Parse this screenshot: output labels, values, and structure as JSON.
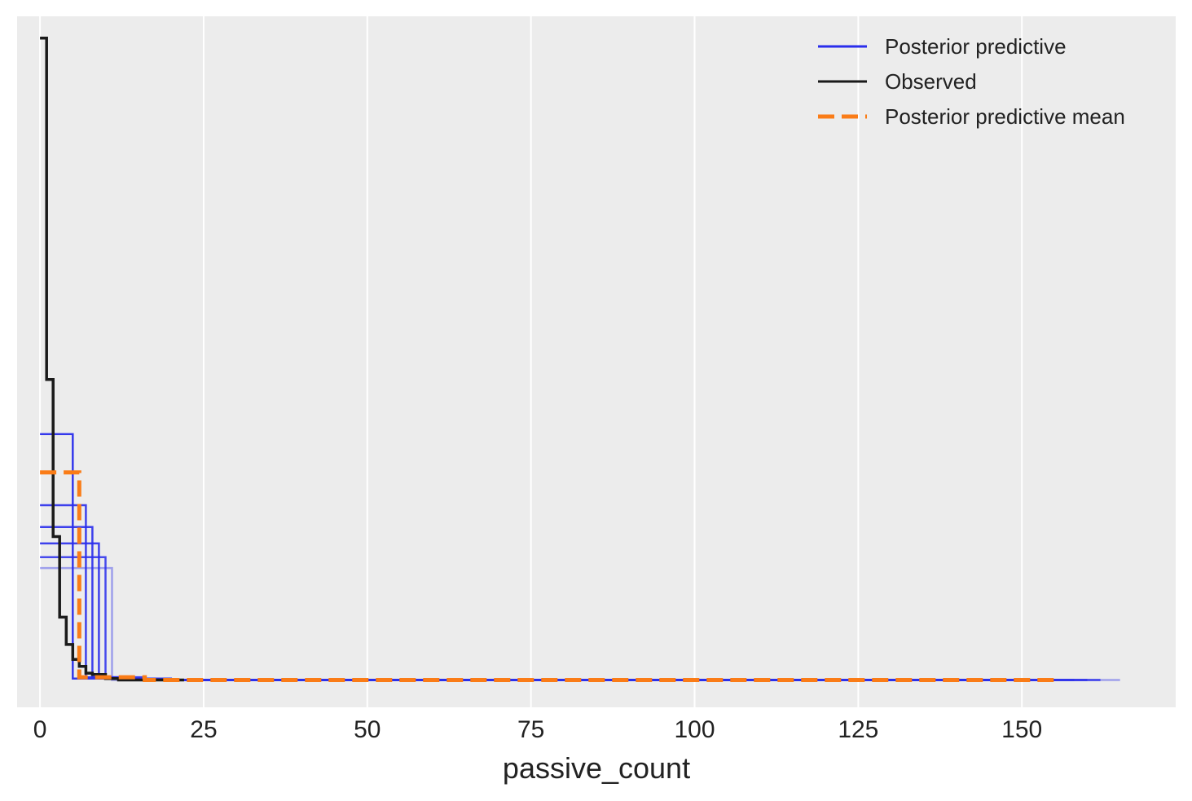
{
  "chart_data": {
    "type": "line",
    "title": "",
    "xlabel": "passive_count",
    "ylabel": "",
    "xlim": [
      -3.5,
      173.5
    ],
    "ylim": [
      -0.02,
      0.486
    ],
    "x_ticks": [
      0,
      25,
      50,
      75,
      100,
      125,
      150
    ],
    "x_tick_labels": [
      "0",
      "25",
      "50",
      "75",
      "100",
      "125",
      "150"
    ],
    "y_ticks_shown": false,
    "grid": "vertical",
    "background": "#ececec",
    "legend": {
      "position": "top-right",
      "entries": [
        {
          "label": "Posterior predictive",
          "color": "#2a2eec",
          "style": "solid"
        },
        {
          "label": "Observed",
          "color": "#1a1a1a",
          "style": "solid"
        },
        {
          "label": "Posterior predictive mean",
          "color": "#fa7c17",
          "style": "dashed"
        }
      ]
    },
    "series": [
      {
        "name": "Observed",
        "role": "observed",
        "color": "#1a1a1a",
        "stroke": "solid",
        "opacity": 1,
        "points": [
          [
            0,
            0.47
          ],
          [
            1,
            0.47
          ],
          [
            1,
            0.22
          ],
          [
            2,
            0.22
          ],
          [
            2,
            0.105
          ],
          [
            3,
            0.105
          ],
          [
            3,
            0.046
          ],
          [
            4,
            0.046
          ],
          [
            4,
            0.026
          ],
          [
            5,
            0.026
          ],
          [
            5,
            0.015
          ],
          [
            6,
            0.015
          ],
          [
            6,
            0.01
          ],
          [
            7,
            0.01
          ],
          [
            7,
            0.005
          ],
          [
            8,
            0.005
          ],
          [
            8,
            0.004
          ],
          [
            10,
            0.004
          ],
          [
            10,
            0.001
          ],
          [
            12,
            0.001
          ],
          [
            12,
            0
          ],
          [
            22,
            0
          ]
        ]
      },
      {
        "name": "Posterior predictive",
        "role": "sample",
        "color": "#2a2eec",
        "stroke": "solid",
        "opacity": 0.95,
        "points": [
          [
            0,
            0.18
          ],
          [
            5,
            0.18
          ],
          [
            5,
            0.001
          ],
          [
            20,
            0.001
          ],
          [
            20,
            0
          ],
          [
            150,
            0
          ]
        ]
      },
      {
        "name": "Posterior predictive",
        "role": "sample",
        "color": "#2a2eec",
        "stroke": "solid",
        "opacity": 0.9,
        "points": [
          [
            0,
            0.128
          ],
          [
            7,
            0.128
          ],
          [
            7,
            0.002
          ],
          [
            16,
            0.002
          ],
          [
            16,
            0
          ],
          [
            155,
            0
          ]
        ]
      },
      {
        "name": "Posterior predictive",
        "role": "sample",
        "color": "#2a2eec",
        "stroke": "solid",
        "opacity": 0.9,
        "points": [
          [
            0,
            0.112
          ],
          [
            8,
            0.112
          ],
          [
            8,
            0.002
          ],
          [
            14,
            0.002
          ],
          [
            14,
            0
          ],
          [
            158,
            0
          ]
        ]
      },
      {
        "name": "Posterior predictive",
        "role": "sample",
        "color": "#2a2eec",
        "stroke": "solid",
        "opacity": 0.9,
        "points": [
          [
            0,
            0.1
          ],
          [
            9,
            0.1
          ],
          [
            9,
            0.001
          ],
          [
            13,
            0.001
          ],
          [
            13,
            0
          ],
          [
            160,
            0
          ]
        ]
      },
      {
        "name": "Posterior predictive",
        "role": "sample",
        "color": "#2a2eec",
        "stroke": "solid",
        "opacity": 0.85,
        "points": [
          [
            0,
            0.09
          ],
          [
            10,
            0.09
          ],
          [
            10,
            0.001
          ],
          [
            13,
            0.001
          ],
          [
            13,
            0
          ],
          [
            162,
            0
          ]
        ]
      },
      {
        "name": "Posterior predictive",
        "role": "sample",
        "color": "#2a2eec",
        "stroke": "solid",
        "opacity": 0.4,
        "points": [
          [
            0,
            0.082
          ],
          [
            11,
            0.082
          ],
          [
            11,
            0
          ],
          [
            165,
            0
          ]
        ]
      },
      {
        "name": "Posterior predictive mean",
        "role": "mean",
        "color": "#fa7c17",
        "stroke": "dashed",
        "opacity": 1,
        "points": [
          [
            0,
            0.152
          ],
          [
            6,
            0.152
          ],
          [
            6,
            0.002
          ],
          [
            16,
            0.002
          ],
          [
            16,
            0
          ],
          [
            155.5,
            0
          ]
        ]
      }
    ]
  }
}
